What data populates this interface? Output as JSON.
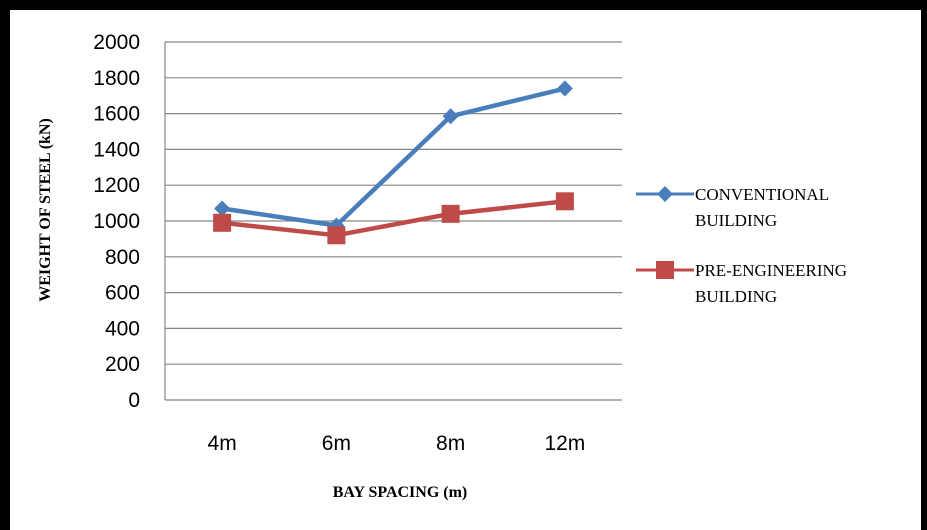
{
  "chart_data": {
    "type": "line",
    "categories": [
      "4m",
      "6m",
      "8m",
      "12m"
    ],
    "series": [
      {
        "name": "CONVENTIONAL BUILDING",
        "name_lines": [
          "CONVENTIONAL",
          "BUILDING"
        ],
        "values": [
          1070,
          975,
          1585,
          1740
        ],
        "color": "#4A7EBB",
        "marker": "diamond"
      },
      {
        "name": "PRE-ENGINEERING BUILDING",
        "name_lines": [
          "PRE-ENGINEERING",
          "BUILDING"
        ],
        "values": [
          990,
          920,
          1040,
          1110
        ],
        "color": "#BE4B48",
        "marker": "square"
      }
    ],
    "xlabel": "BAY SPACING (m)",
    "ylabel": "WEIGHT OF STEEL (kN)",
    "ylim": [
      0,
      2000
    ],
    "yticks": [
      0,
      200,
      400,
      600,
      800,
      1000,
      1200,
      1400,
      1600,
      1800,
      2000
    ],
    "grid": true,
    "legend_position": "right"
  }
}
